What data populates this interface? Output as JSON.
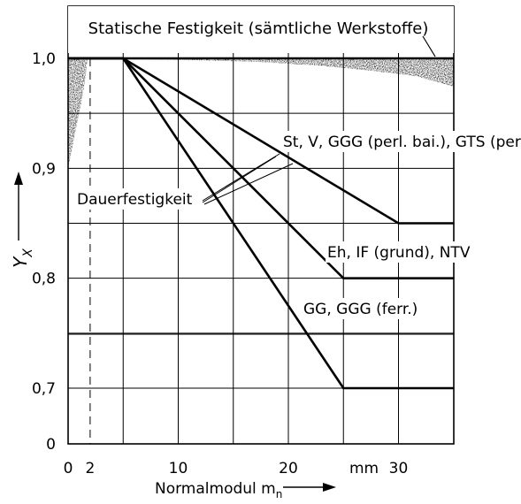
{
  "chart_data": {
    "type": "line",
    "title": "Statische Festigkeit (sämtliche Werkstoffe)",
    "xlabel": "Normalmodul m",
    "xlabel_subscript": "n",
    "x_unit": "mm",
    "ylabel": "Y",
    "ylabel_subscript": "X",
    "xlim": [
      0,
      35
    ],
    "x_ticks": [
      0,
      2,
      10,
      20,
      30
    ],
    "x_tick_labels": [
      "0",
      "2",
      "10",
      "20",
      "30"
    ],
    "y_ticks": [
      0.7,
      0.8,
      0.9,
      1.0
    ],
    "y_tick_labels": [
      "0,7",
      "0,8",
      "0,9",
      "1,0"
    ],
    "y_zero_label": "0",
    "ylim": [
      0.65,
      1.04
    ],
    "grid": true,
    "reference_x": 2,
    "group_label": "Dauerfestigkeit",
    "series": [
      {
        "name": "Statische Festigkeit (sämtliche Werkstoffe)",
        "x": [
          0,
          35
        ],
        "y": [
          1.0,
          1.0
        ]
      },
      {
        "name": "St, V, GGG (perl. bai.), GTS (perl.)",
        "x": [
          0,
          5,
          30,
          35
        ],
        "y": [
          1.0,
          1.0,
          0.85,
          0.85
        ]
      },
      {
        "name": "Eh, IF (grund), NTV",
        "x": [
          0,
          5,
          25,
          35
        ],
        "y": [
          1.0,
          1.0,
          0.8,
          0.8
        ]
      },
      {
        "name": "GG, GGG (ferr.)",
        "x": [
          0,
          5,
          25,
          35
        ],
        "y": [
          1.0,
          1.0,
          0.7,
          0.7
        ]
      }
    ]
  }
}
